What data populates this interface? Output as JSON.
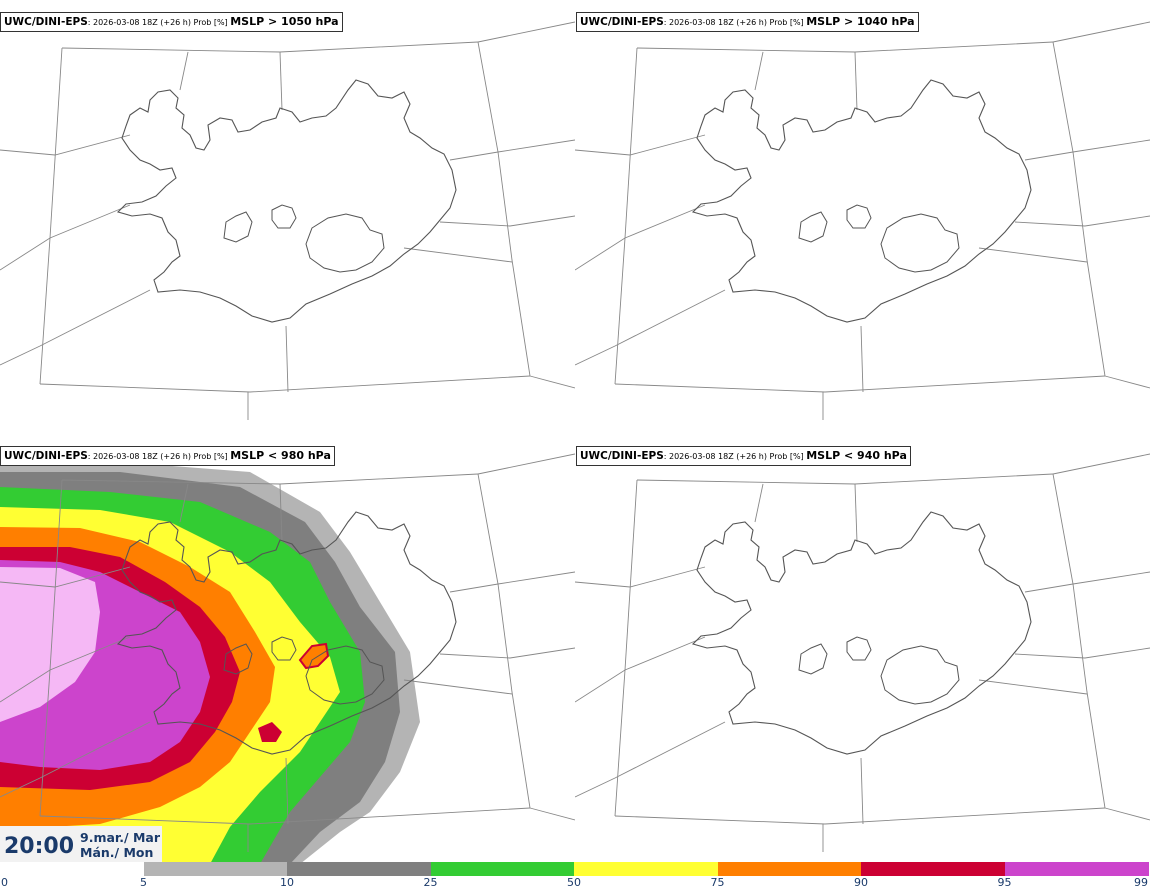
{
  "panels": [
    {
      "model": "UWC/DINI-EPS",
      "meta": ": 2026-03-08 18Z (+26 h) Prob [%] ",
      "threshold": "MSLP > 1050 hPa",
      "filled": false
    },
    {
      "model": "UWC/DINI-EPS",
      "meta": ": 2026-03-08 18Z (+26 h) Prob [%] ",
      "threshold": "MSLP > 1040 hPa",
      "filled": false
    },
    {
      "model": "UWC/DINI-EPS",
      "meta": ": 2026-03-08 18Z (+26 h) Prob [%] ",
      "threshold": "MSLP < 980 hPa",
      "filled": true
    },
    {
      "model": "UWC/DINI-EPS",
      "meta": ": 2026-03-08 18Z (+26 h) Prob [%] ",
      "threshold": "MSLP < 940 hPa",
      "filled": false
    }
  ],
  "clock": {
    "time": "20:00",
    "date_line1": "9.mar./ Mar",
    "date_line2": "Mán./ Mon"
  },
  "colorbar": {
    "ticks": [
      "0",
      "5",
      "10",
      "25",
      "50",
      "75",
      "90",
      "95",
      "99"
    ],
    "colors": [
      "#ffffff",
      "#b4b4b4",
      "#7f7f7f",
      "#33cc33",
      "#ffff33",
      "#ff7f00",
      "#cc0033",
      "#cc44cc",
      "#f5b8f5"
    ]
  },
  "map_colors": {
    "coast": "#555555",
    "grid": "#888888"
  }
}
